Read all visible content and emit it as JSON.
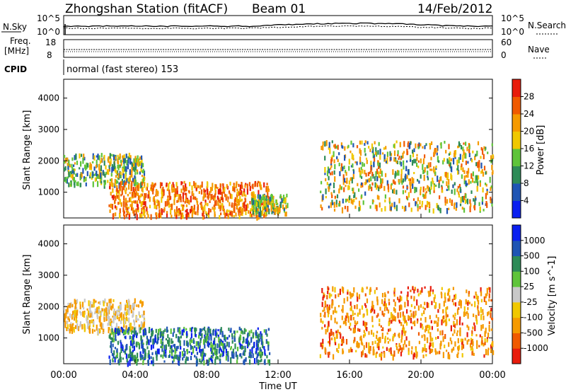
{
  "header": {
    "station_title": "Zhongshan Station (fitACF)",
    "beam": "Beam 01",
    "date": "14/Feb/2012"
  },
  "sky_panel": {
    "left_label": "N.Sky",
    "left_top": "10^5",
    "left_bottom": "10^0",
    "right_top": "10^5",
    "right_bottom": "10^0",
    "right_label": "N.Search"
  },
  "freq_panel": {
    "left_label_line1": "Freq.",
    "left_label_line2": "[MHz]",
    "left_top": "18",
    "left_bottom": "8",
    "right_top": "60",
    "right_bottom": "0",
    "right_label": "Nave"
  },
  "cpid": {
    "label": "CPID",
    "text": "normal (fast stereo) 153"
  },
  "time_axis": {
    "ticks": [
      "00:00",
      "04:00",
      "08:00",
      "12:00",
      "16:00",
      "20:00",
      "00:00"
    ],
    "label": "Time UT"
  },
  "chart_data": [
    {
      "type": "heatmap",
      "title": "",
      "xlabel": "Time UT",
      "ylabel": "Slant Range [km]",
      "xlim": [
        0,
        24
      ],
      "ylim": [
        180,
        4600
      ],
      "y_ticks": [
        "1000",
        "2000",
        "3000",
        "4000"
      ],
      "colorbar": {
        "label": "Power [dB]",
        "ticks": [
          "4",
          "8",
          "12",
          "16",
          "20",
          "24",
          "28"
        ],
        "colors": [
          "#0a1ff0",
          "#1f55b4",
          "#2e8b57",
          "#5fc43a",
          "#f0c800",
          "#f59a00",
          "#f05a00",
          "#e81c0c"
        ],
        "range": [
          0,
          32
        ]
      },
      "echo_regions": [
        {
          "t_start": 0.0,
          "t_end": 4.5,
          "range_low": 1200,
          "range_high": 2200,
          "dominant": "green-yellow"
        },
        {
          "t_start": 2.5,
          "t_end": 11.5,
          "range_low": 200,
          "range_high": 1300,
          "dominant": "orange-red"
        },
        {
          "t_start": 10.5,
          "t_end": 12.5,
          "range_low": 300,
          "range_high": 900,
          "dominant": "green-yellow"
        },
        {
          "t_start": 14.3,
          "t_end": 24.0,
          "range_low": 400,
          "range_high": 2600,
          "dominant": "yellow-orange"
        }
      ]
    },
    {
      "type": "heatmap",
      "title": "",
      "xlabel": "Time UT",
      "ylabel": "Slant Range [km]",
      "xlim": [
        0,
        24
      ],
      "ylim": [
        180,
        4600
      ],
      "y_ticks": [
        "1000",
        "2000",
        "3000",
        "4000"
      ],
      "colorbar": {
        "label": "Velocity [m s^-1]",
        "ticks": [
          "1000",
          "500",
          "100",
          "25",
          "-25",
          "-100",
          "-500",
          "-1000"
        ],
        "colors": [
          "#0a1ff0",
          "#1f55b4",
          "#2e8b57",
          "#5fc43a",
          "#c8c8c8",
          "#f0c800",
          "#f59a00",
          "#f05a00",
          "#e81c0c"
        ],
        "range": [
          -1200,
          1200
        ]
      },
      "echo_regions": [
        {
          "t_start": 0.0,
          "t_end": 4.5,
          "range_low": 1200,
          "range_high": 2200,
          "dominant": "orange/grey"
        },
        {
          "t_start": 2.5,
          "t_end": 11.5,
          "range_low": 200,
          "range_high": 1300,
          "dominant": "blue-green"
        },
        {
          "t_start": 14.3,
          "t_end": 24.0,
          "range_low": 400,
          "range_high": 2600,
          "dominant": "orange"
        }
      ]
    }
  ]
}
